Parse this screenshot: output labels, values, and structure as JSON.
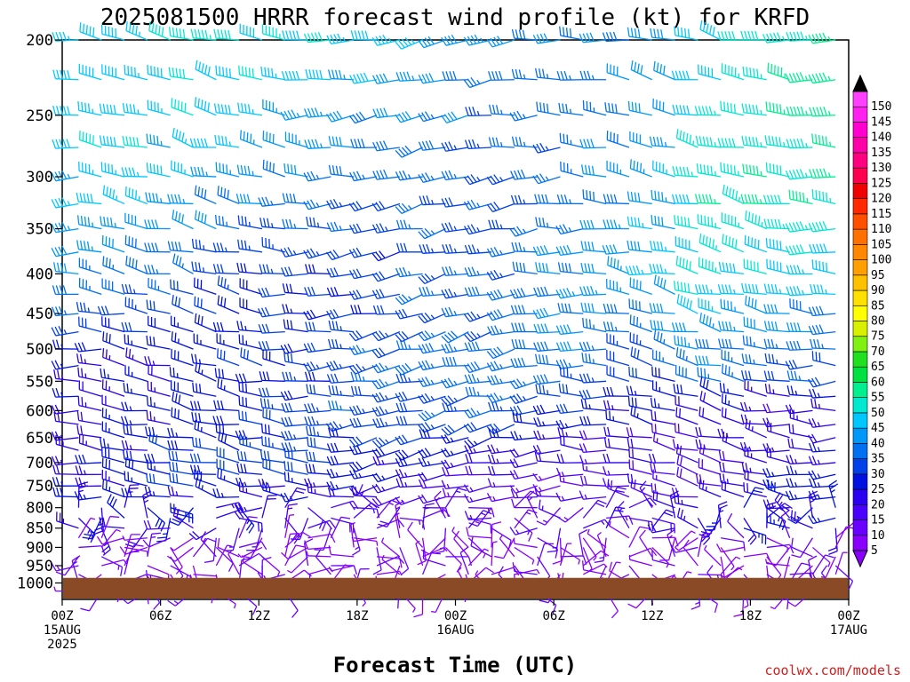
{
  "chart_data": {
    "type": "wind-barb profile",
    "title": "2025081500 HRRR forecast wind profile (kt) for KRFD",
    "xlabel": "Forecast Time (UTC)",
    "credit": "coolwx.com/models",
    "y_axis": {
      "scale": "pressure (hPa), inverted",
      "ylim": [
        1050,
        200
      ],
      "ticks": [
        200,
        250,
        300,
        350,
        400,
        450,
        500,
        550,
        600,
        650,
        700,
        750,
        800,
        850,
        900,
        950,
        1000
      ]
    },
    "x_axis": {
      "range_hours": [
        0,
        48
      ],
      "ticks": [
        {
          "hour": 0,
          "line1": "00Z",
          "line2": "15AUG",
          "line3": "2025"
        },
        {
          "hour": 6,
          "line1": "06Z",
          "line2": "",
          "line3": ""
        },
        {
          "hour": 12,
          "line1": "12Z",
          "line2": "",
          "line3": ""
        },
        {
          "hour": 18,
          "line1": "18Z",
          "line2": "",
          "line3": ""
        },
        {
          "hour": 24,
          "line1": "00Z",
          "line2": "16AUG",
          "line3": ""
        },
        {
          "hour": 30,
          "line1": "06Z",
          "line2": "",
          "line3": ""
        },
        {
          "hour": 36,
          "line1": "12Z",
          "line2": "",
          "line3": ""
        },
        {
          "hour": 42,
          "line1": "18Z",
          "line2": "",
          "line3": ""
        },
        {
          "hour": 48,
          "line1": "00Z",
          "line2": "17AUG",
          "line3": ""
        }
      ]
    },
    "ground_color": "#8b4a26",
    "colorbar": {
      "levels": [
        5,
        10,
        15,
        20,
        25,
        30,
        35,
        40,
        45,
        50,
        55,
        60,
        65,
        70,
        75,
        80,
        85,
        90,
        95,
        100,
        105,
        110,
        115,
        120,
        125,
        130,
        135,
        140,
        145,
        150
      ],
      "colors": [
        "#8a00ff",
        "#6a00ff",
        "#4a00ff",
        "#2a00f0",
        "#0010e0",
        "#0040e8",
        "#0070f0",
        "#0098f8",
        "#00c8ff",
        "#00e8d0",
        "#00f090",
        "#00e040",
        "#20e020",
        "#80f010",
        "#d8f000",
        "#ffff00",
        "#ffe000",
        "#ffc000",
        "#ffa000",
        "#ff8800",
        "#ff7000",
        "#ff5000",
        "#ff2800",
        "#f00000",
        "#ff0050",
        "#ff0080",
        "#ff00a8",
        "#ff00d0",
        "#ff20f0",
        "#ff40ff"
      ]
    },
    "series": [
      {
        "pressure_levels": [
          200,
          225,
          250,
          275,
          300,
          325,
          350,
          375,
          400,
          425,
          450,
          475,
          500,
          525,
          550,
          575,
          600,
          625,
          650,
          675,
          700,
          725,
          750,
          775,
          800,
          825,
          850,
          875,
          900,
          925,
          950,
          975,
          1000,
          1025
        ],
        "note": "wind barbs approximated; speed increases with height (about 5-10 kt near surface, 30-50 kt near 200-250 hPa), westerly aloft, variable near surface"
      }
    ]
  }
}
